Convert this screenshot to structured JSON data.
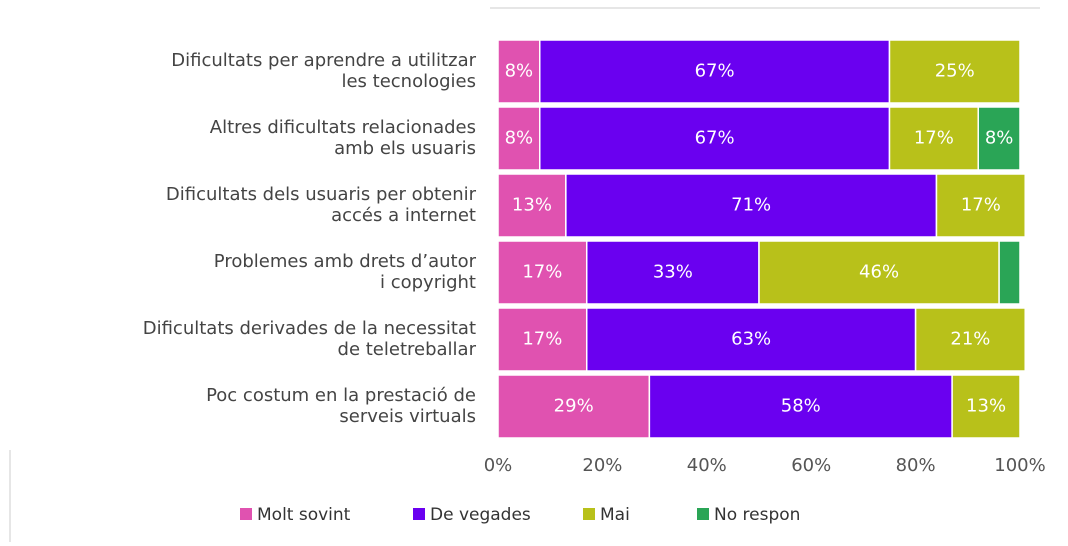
{
  "chart_data": {
    "type": "stacked-bar-horizontal",
    "categories": [
      "Dificultats per aprendre a utilitzar\nles tecnologies",
      "Altres dificultats relacionades\namb els usuaris",
      "Dificultats dels usuaris per obtenir\naccés a internet",
      "Problemes amb drets d’autor\ni copyright",
      "Dificultats derivades de la necessitat\nde teletreballar",
      "Poc costum en la prestació de\nserveis virtuals"
    ],
    "series": [
      {
        "name": "Molt sovint",
        "color": "#e052b0",
        "values": [
          8,
          8,
          13,
          17,
          17,
          29
        ],
        "value_labels": [
          "8%",
          "8%",
          "13%",
          "17%",
          "17%",
          "29%"
        ]
      },
      {
        "name": "De vegades",
        "color": "#6a00f0",
        "values": [
          67,
          67,
          71,
          33,
          63,
          58
        ],
        "value_labels": [
          "67%",
          "67%",
          "71%",
          "33%",
          "63%",
          "58%"
        ]
      },
      {
        "name": "Mai",
        "color": "#b8c11a",
        "values": [
          25,
          17,
          17,
          46,
          21,
          13
        ],
        "value_labels": [
          "25%",
          "17%",
          "17%",
          "46%",
          "21%",
          "13%"
        ]
      },
      {
        "name": "No respon",
        "color": "#2aa556",
        "values": [
          null,
          8,
          null,
          4,
          null,
          null
        ],
        "value_labels": [
          null,
          "8%",
          null,
          null,
          null,
          null
        ]
      }
    ],
    "xlim": [
      0,
      100
    ],
    "xticks": [
      {
        "value": 0,
        "label": "0%"
      },
      {
        "value": 20,
        "label": "20%"
      },
      {
        "value": 40,
        "label": "40%"
      },
      {
        "value": 60,
        "label": "60%"
      },
      {
        "value": 80,
        "label": "80%"
      },
      {
        "value": 100,
        "label": "100%"
      }
    ]
  }
}
